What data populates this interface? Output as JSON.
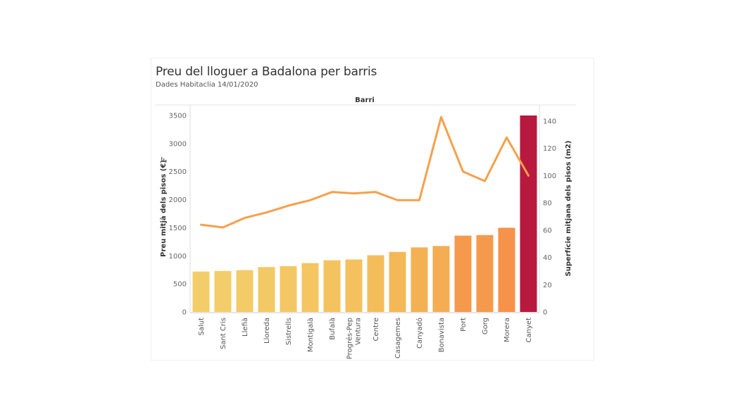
{
  "header": {
    "title": "Preu del lloguer a Badalona per barris",
    "subtitle": "Dades Habitaclia 14/01/2020"
  },
  "chart_data": {
    "type": "bar",
    "title": "Preu del lloguer a Badalona per barris",
    "subtitle": "Dades Habitaclia 14/01/2020",
    "xlabel": "Barri",
    "ylabel": "Preu mitjà dels pisos (€)",
    "ylabel_icon": "sort-descending-icon",
    "y2label": "Superfície mitjana dels pisos (m2)",
    "ylim": [
      0,
      3500
    ],
    "y2lim": [
      0,
      145
    ],
    "yticks": [
      "0",
      "500",
      "1000",
      "1500",
      "2000",
      "2500",
      "3000",
      "3500"
    ],
    "y2ticks": [
      "0",
      "20",
      "40",
      "60",
      "80",
      "100",
      "120",
      "140"
    ],
    "grid": false,
    "categories": [
      [
        "Salut"
      ],
      [
        "Sant Cris"
      ],
      [
        "Llefià"
      ],
      [
        "Lloreda"
      ],
      [
        "Sistrells"
      ],
      [
        "Montigalà"
      ],
      [
        "Bufalà"
      ],
      [
        "Progrés-Pep",
        "Ventura"
      ],
      [
        "Centre"
      ],
      [
        "Casagemes"
      ],
      [
        "Canyadó"
      ],
      [
        "Bonavista"
      ],
      [
        "Port"
      ],
      [
        "Gorg"
      ],
      [
        "Morera"
      ],
      [
        "Canyet"
      ]
    ],
    "series": [
      {
        "type": "bar",
        "axis": "left",
        "values": [
          720,
          730,
          745,
          800,
          815,
          870,
          920,
          935,
          1010,
          1070,
          1150,
          1175,
          1360,
          1370,
          1500,
          3500
        ],
        "colors": [
          "#f3cd6a",
          "#f3cd6a",
          "#f3cb67",
          "#f3c965",
          "#f3c763",
          "#f4c561",
          "#f4c35f",
          "#f4c15d",
          "#f4bd5a",
          "#f4b857",
          "#f4b154",
          "#f4ad52",
          "#f59a4c",
          "#f59a4c",
          "#f6924a",
          "#b8193e"
        ]
      },
      {
        "type": "line",
        "axis": "right",
        "color": "#f6a04a",
        "values": [
          64,
          62,
          69,
          73,
          78,
          82,
          88,
          87,
          88,
          82,
          82,
          143,
          103,
          96,
          128,
          100
        ]
      }
    ]
  }
}
